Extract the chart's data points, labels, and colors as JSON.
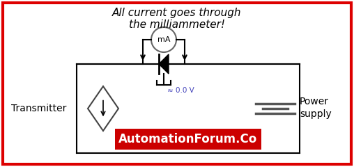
{
  "title_line1": "All current goes through",
  "title_line2": "the milliammeter!",
  "title_fontsize": 11,
  "title_style": "italic",
  "border_color": "#dd0000",
  "border_linewidth": 3,
  "bg_color": "#ffffff",
  "circuit_line_color": "#000000",
  "circuit_linewidth": 1.5,
  "transmitter_label": "Transmitter",
  "power_supply_label1": "Power",
  "power_supply_label2": "supply",
  "milliammeter_label": "mA",
  "diode_voltage": "≈ 0.0 V",
  "watermark_text": "AutomationForum.Co",
  "watermark_bg": "#cc0000",
  "watermark_color": "#ffffff",
  "watermark_fontsize": 12
}
